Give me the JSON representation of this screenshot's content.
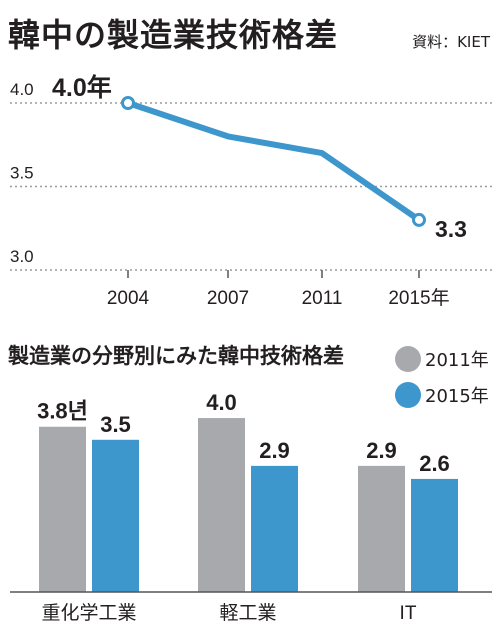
{
  "title": "韓中の製造業技術格差",
  "source": "資料：KIET",
  "colors": {
    "line": "#3d97cc",
    "bar_2011": "#a7a9ac",
    "bar_2015": "#3d97cc",
    "text": "#231f20",
    "grid": "#9b9b9b",
    "axis": "#555555"
  },
  "chart_data": [
    {
      "type": "line",
      "title": "韓中の製造業技術格差",
      "x": [
        "2004",
        "2007",
        "2011",
        "2015年"
      ],
      "series": [
        {
          "values": [
            4.0,
            3.8,
            3.7,
            3.3
          ]
        }
      ],
      "point_labels": [
        "4.0年",
        "",
        "",
        "3.3"
      ],
      "yticks": [
        "4.0",
        "3.5",
        "3.0"
      ],
      "ylim": [
        3.0,
        4.0
      ],
      "grid": "dotted horizontal",
      "color": "#3d97cc"
    },
    {
      "type": "bar",
      "title": "製造業の分野別にみた韓中技術格差",
      "categories": [
        "重化学工業",
        "軽工業",
        "IT"
      ],
      "series": [
        {
          "name": "2011年",
          "values": [
            3.8,
            4.0,
            2.9
          ],
          "labels": [
            "3.8년",
            "4.0",
            "2.9"
          ],
          "color": "#a7a9ac"
        },
        {
          "name": "2015年",
          "values": [
            3.5,
            2.9,
            2.6
          ],
          "labels": [
            "3.5",
            "2.9",
            "2.6"
          ],
          "color": "#3d97cc"
        }
      ],
      "ylim": [
        0,
        4.3
      ],
      "legend": "top-right"
    }
  ]
}
